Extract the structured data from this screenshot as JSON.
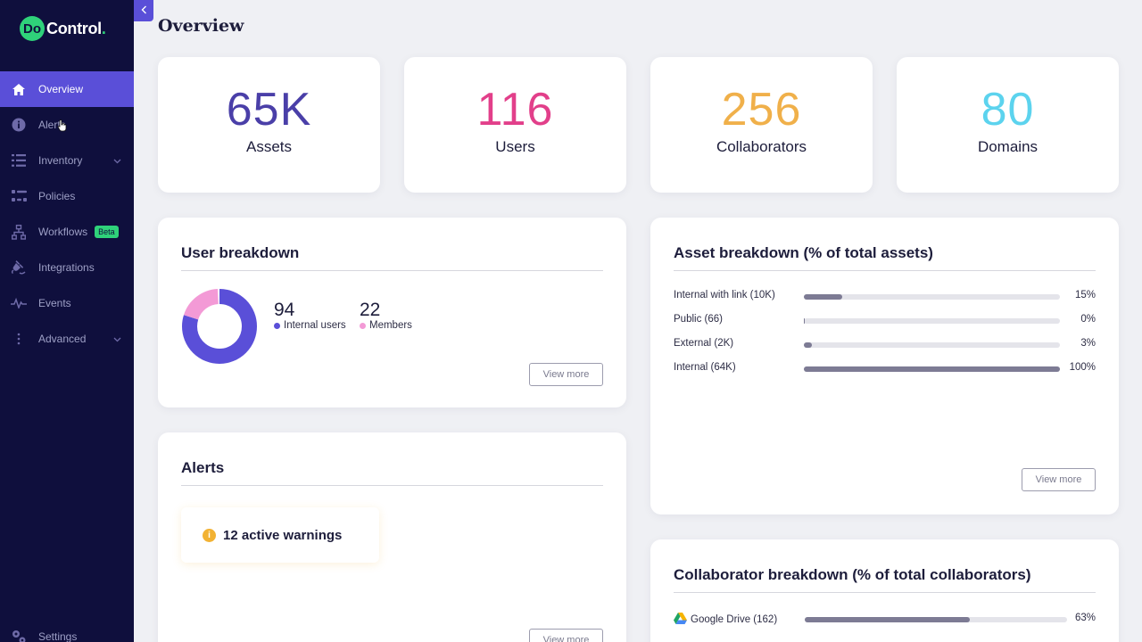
{
  "app": {
    "logo_mark": "Do",
    "logo_text": "Control",
    "logo_dot": "."
  },
  "sidebar": {
    "items": [
      {
        "label": "Overview",
        "icon": "home-icon",
        "active": true
      },
      {
        "label": "Alerts",
        "icon": "info-icon"
      },
      {
        "label": "Inventory",
        "icon": "list-icon",
        "has_chevron": true
      },
      {
        "label": "Policies",
        "icon": "policies-icon"
      },
      {
        "label": "Workflows",
        "icon": "workflow-icon",
        "badge": "Beta"
      },
      {
        "label": "Integrations",
        "icon": "plug-icon"
      },
      {
        "label": "Events",
        "icon": "pulse-icon"
      },
      {
        "label": "Advanced",
        "icon": "more-vertical-icon",
        "has_chevron": true
      }
    ],
    "settings_label": "Settings"
  },
  "page": {
    "title": "Overview"
  },
  "stats": [
    {
      "value": "65K",
      "label": "Assets",
      "color": "#4a3fa8"
    },
    {
      "value": "116",
      "label": "Users",
      "color": "#e23f8a"
    },
    {
      "value": "256",
      "label": "Collaborators",
      "color": "#f0b04a"
    },
    {
      "value": "80",
      "label": "Domains",
      "color": "#5cd3ee"
    }
  ],
  "user_breakdown": {
    "title": "User breakdown",
    "internal_value": "94",
    "internal_label": "Internal users",
    "members_value": "22",
    "members_label": "Members",
    "internal_color": "#5a4fd8",
    "members_color": "#f39ad6",
    "view_more": "View more"
  },
  "asset_breakdown": {
    "title": "Asset breakdown (% of total assets)",
    "rows": [
      {
        "label": "Internal with link (10K)",
        "pct": "15%",
        "fill": 0.15
      },
      {
        "label": "Public (66)",
        "pct": "0%",
        "fill": 0.0
      },
      {
        "label": "External (2K)",
        "pct": "3%",
        "fill": 0.03
      },
      {
        "label": "Internal (64K)",
        "pct": "100%",
        "fill": 1.0
      }
    ],
    "view_more": "View more"
  },
  "alerts": {
    "title": "Alerts",
    "warning_text": "12 active warnings",
    "view_more": "View more"
  },
  "collaborator_breakdown": {
    "title": "Collaborator breakdown (% of total collaborators)",
    "rows": [
      {
        "label": "Google Drive (162)",
        "pct": "63%",
        "fill": 0.63,
        "icon": "google-drive-icon"
      }
    ]
  }
}
